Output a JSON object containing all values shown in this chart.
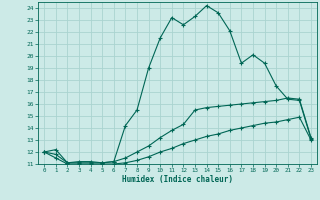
{
  "xlabel": "Humidex (Indice chaleur)",
  "xlim": [
    -0.5,
    23.5
  ],
  "ylim": [
    11,
    24.5
  ],
  "yticks": [
    11,
    12,
    13,
    14,
    15,
    16,
    17,
    18,
    19,
    20,
    21,
    22,
    23,
    24
  ],
  "xticks": [
    0,
    1,
    2,
    3,
    4,
    5,
    6,
    7,
    8,
    9,
    10,
    11,
    12,
    13,
    14,
    15,
    16,
    17,
    18,
    19,
    20,
    21,
    22,
    23
  ],
  "bg_color": "#cceae7",
  "grid_color": "#aad4d0",
  "line_color": "#006655",
  "series1_x": [
    0,
    1,
    2,
    3,
    4,
    5,
    6,
    7,
    8,
    9,
    10,
    11,
    12,
    13,
    14,
    15,
    16,
    17,
    18,
    19,
    20,
    21,
    22,
    23
  ],
  "series1_y": [
    12.0,
    12.2,
    11.1,
    11.2,
    11.2,
    11.1,
    11.2,
    14.2,
    15.5,
    19.0,
    21.5,
    23.2,
    22.6,
    23.3,
    24.2,
    23.6,
    22.1,
    19.4,
    20.1,
    19.4,
    17.5,
    16.4,
    16.3,
    13.1
  ],
  "series2_x": [
    0,
    1,
    2,
    3,
    4,
    5,
    6,
    7,
    8,
    9,
    10,
    11,
    12,
    13,
    14,
    15,
    16,
    17,
    18,
    19,
    20,
    21,
    22,
    23
  ],
  "series2_y": [
    12.0,
    11.8,
    11.1,
    11.1,
    11.1,
    11.1,
    11.2,
    11.5,
    12.0,
    12.5,
    13.2,
    13.8,
    14.3,
    15.5,
    15.7,
    15.8,
    15.9,
    16.0,
    16.1,
    16.2,
    16.3,
    16.5,
    16.4,
    13.2
  ],
  "series3_x": [
    0,
    1,
    2,
    3,
    4,
    5,
    6,
    7,
    8,
    9,
    10,
    11,
    12,
    13,
    14,
    15,
    16,
    17,
    18,
    19,
    20,
    21,
    22,
    23
  ],
  "series3_y": [
    12.0,
    11.5,
    11.0,
    11.0,
    11.0,
    11.0,
    11.0,
    11.1,
    11.3,
    11.6,
    12.0,
    12.3,
    12.7,
    13.0,
    13.3,
    13.5,
    13.8,
    14.0,
    14.2,
    14.4,
    14.5,
    14.7,
    14.9,
    13.0
  ]
}
